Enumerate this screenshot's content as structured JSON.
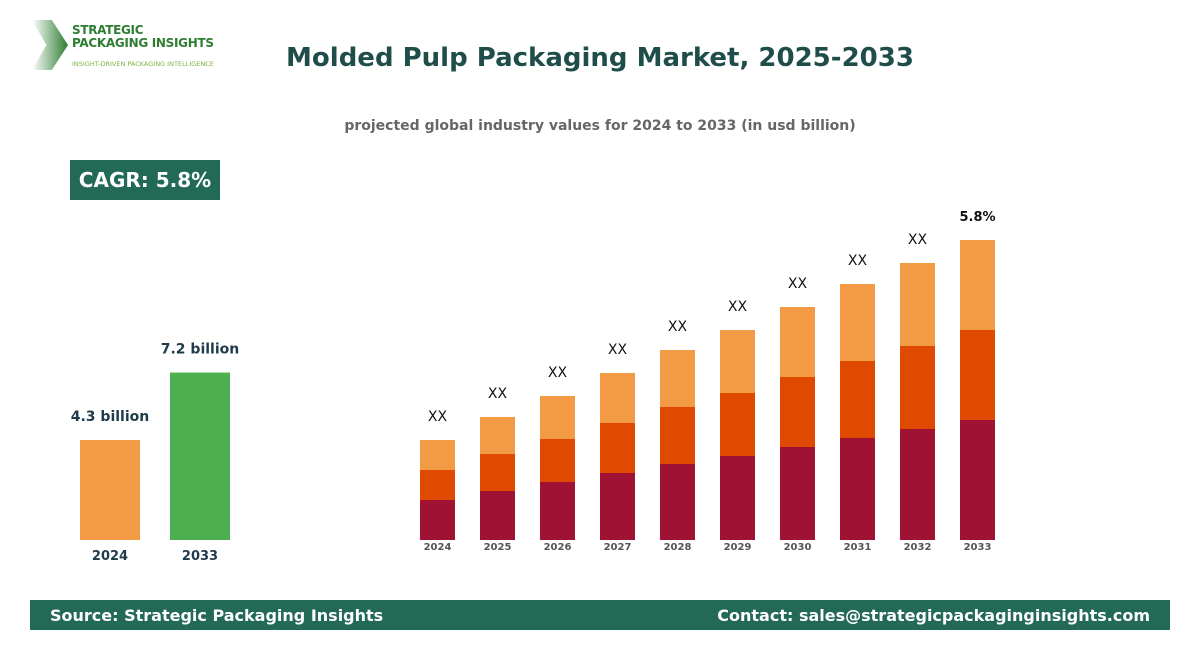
{
  "logo": {
    "line1": "STRATEGIC",
    "line2": "PACKAGING INSIGHTS",
    "tagline": "INSIGHT-DRIVEN PACKAGING INTELLIGENCE"
  },
  "title": "Molded Pulp Packaging Market, 2025-2033",
  "subtitle": "projected global industry values for 2024 to 2033 (in usd billion)",
  "cagr_badge": "CAGR: 5.8%",
  "colors": {
    "orange": "#f39a45",
    "green": "#4caf50",
    "dark_orange": "#e04a00",
    "crimson": "#a01234",
    "footer": "#226a56",
    "title": "#1f4e4a"
  },
  "chart_data": [
    {
      "type": "bar",
      "categories": [
        "2024",
        "2033"
      ],
      "values": [
        4.3,
        7.2
      ],
      "data_labels": [
        "4.3 billion",
        "7.2 billion"
      ],
      "bar_colors": [
        "#f39a45",
        "#4caf50"
      ]
    },
    {
      "type": "bar",
      "stacked": true,
      "categories": [
        "2024",
        "2025",
        "2026",
        "2027",
        "2028",
        "2029",
        "2030",
        "2031",
        "2032",
        "2033"
      ],
      "series": [
        {
          "values": [
            40,
            49,
            58,
            67,
            76,
            84,
            93,
            102,
            111,
            120
          ],
          "color": "#a01234"
        },
        {
          "values": [
            30,
            37,
            43,
            50,
            57,
            63,
            70,
            77,
            83,
            90
          ],
          "color": "#e04a00"
        },
        {
          "values": [
            30,
            37,
            43,
            50,
            57,
            63,
            70,
            77,
            83,
            90
          ],
          "color": "#f39a45"
        }
      ],
      "data_labels": [
        "XX",
        "XX",
        "XX",
        "XX",
        "XX",
        "XX",
        "XX",
        "XX",
        "XX",
        "5.8%"
      ],
      "grid": false
    }
  ],
  "footer": {
    "source": "Source: Strategic Packaging Insights",
    "contact": "Contact: sales@strategicpackaginginsights.com"
  }
}
